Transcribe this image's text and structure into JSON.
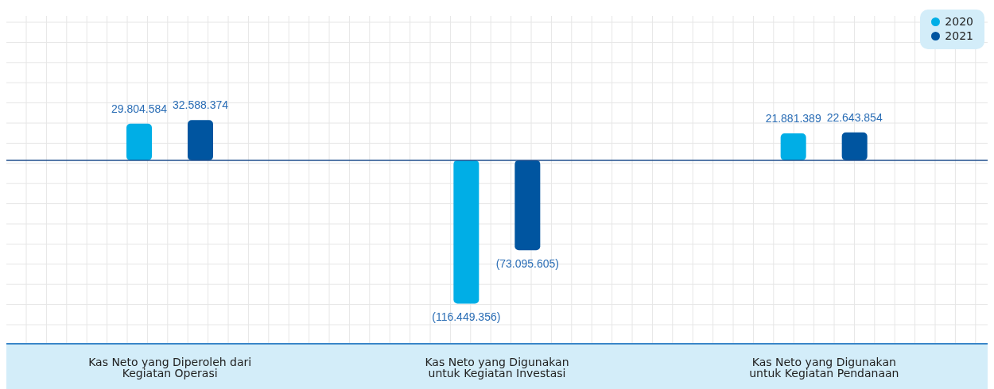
{
  "chart_data": {
    "type": "bar",
    "categories": [
      "Kas Neto yang Diperoleh dari Kegiatan Operasi",
      "Kas Neto yang Digunakan untuk Kegiatan Investasi",
      "Kas Neto yang Digunakan untuk Kegiatan Pendanaan"
    ],
    "series": [
      {
        "name": "2020",
        "color": "#00aee6",
        "values": [
          29804584,
          -116449356,
          21881389
        ],
        "value_labels": [
          "29.804.584",
          "(116.449.356)",
          "21.881.389"
        ]
      },
      {
        "name": "2021",
        "color": "#0055a0",
        "values": [
          32588374,
          -73095605,
          22643854
        ],
        "value_labels": [
          "32.588.374",
          "(73.095.605)",
          "22.643.854"
        ]
      }
    ],
    "ref_lines": [
      {
        "axis": "y",
        "value": 0,
        "color": "#1f4e8c"
      }
    ],
    "data_labels": true,
    "grid": true,
    "legend": "top right"
  }
}
